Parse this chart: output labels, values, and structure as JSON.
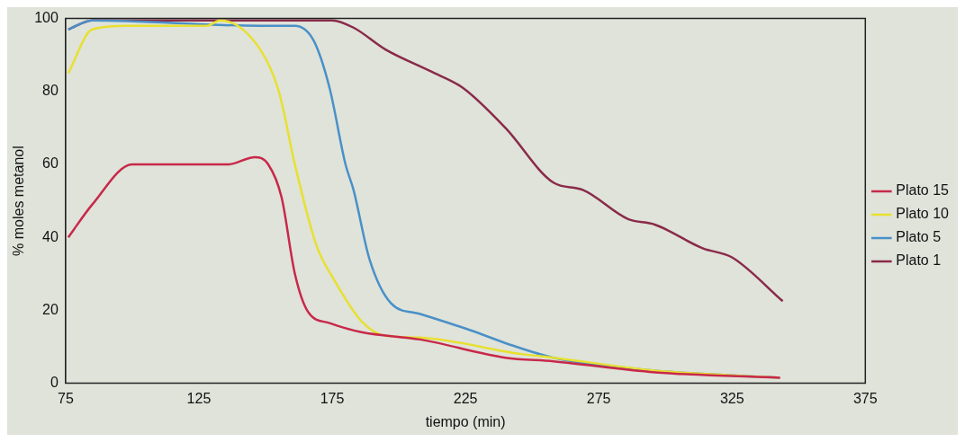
{
  "chart_data": {
    "type": "line",
    "xlabel": "tiempo (min)",
    "ylabel": "% moles metanol",
    "xlim": [
      75,
      375
    ],
    "xticks": [
      75,
      125,
      175,
      225,
      275,
      325,
      375
    ],
    "ylim": [
      0,
      100
    ],
    "yticks": [
      0,
      20,
      40,
      60,
      80,
      100
    ],
    "grid": false,
    "legend": "right",
    "marker": "none",
    "line_style": "solid",
    "series": [
      {
        "name": "Plato 15",
        "color": "#c8284a",
        "x": [
          76,
          85,
          100,
          136,
          146,
          151,
          156,
          161,
          166,
          174,
          186,
          208,
          240,
          258,
          296,
          343
        ],
        "values": [
          40,
          49,
          60,
          60,
          62,
          60,
          51,
          30,
          19.5,
          16.5,
          14,
          12,
          7,
          6,
          3,
          1.5
        ]
      },
      {
        "name": "Plato 10",
        "color": "#e8e030",
        "x": [
          76,
          85,
          98,
          128,
          133,
          148,
          155,
          161,
          169,
          176,
          186,
          195,
          208,
          246,
          258,
          296,
          343
        ],
        "values": [
          85,
          97,
          98,
          98,
          99.5,
          91.5,
          80,
          60,
          38,
          28,
          17,
          13,
          12.5,
          8,
          7,
          3.5,
          1.5
        ]
      },
      {
        "name": "Plato 5",
        "color": "#4a90c8",
        "x": [
          76,
          85,
          148,
          161,
          168,
          174,
          180,
          183,
          189,
          197,
          208,
          227,
          242,
          258,
          296,
          343
        ],
        "values": [
          97,
          99.5,
          98,
          98,
          94,
          81,
          60,
          53,
          34,
          22,
          19,
          14.5,
          10.5,
          7,
          3.5,
          1.5
        ]
      },
      {
        "name": "Plato 1",
        "color": "#8a2a4a",
        "x": [
          76,
          85,
          175,
          183,
          195,
          212,
          224,
          240,
          258,
          269,
          286,
          296,
          314,
          325,
          344
        ],
        "values": [
          97,
          99.5,
          99.5,
          97.5,
          91.5,
          85.5,
          81,
          70,
          55,
          53,
          45,
          43.5,
          37,
          34.5,
          22.5
        ]
      }
    ]
  }
}
